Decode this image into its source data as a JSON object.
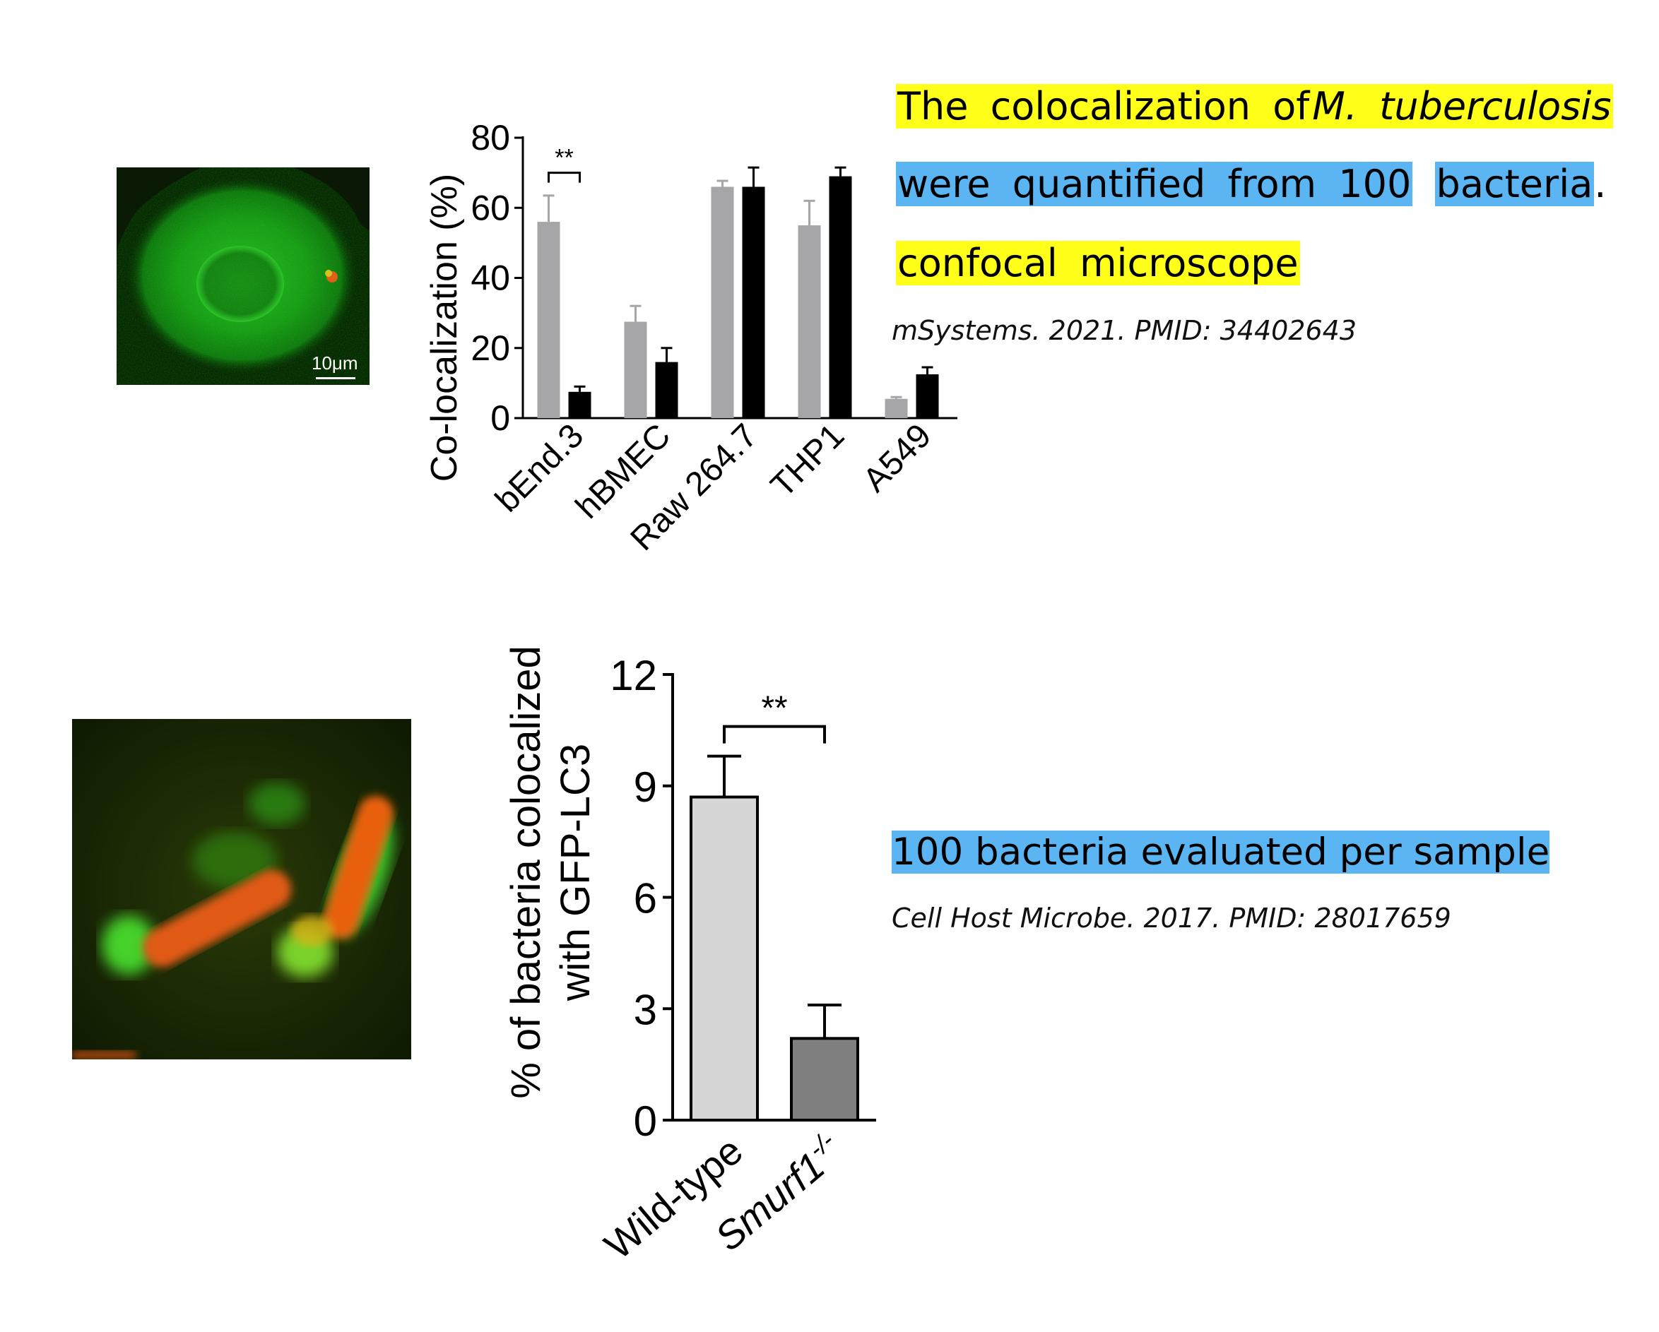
{
  "panel_top": {
    "image": {
      "scale_bar_label": "10μm"
    },
    "chart_data": {
      "type": "bar",
      "categories": [
        "bEnd.3",
        "hBMEC",
        "Raw 264.7",
        "THP1",
        "A549"
      ],
      "ylabel": "Co-localization (%)",
      "ylim": [
        0,
        80
      ],
      "yticks": [
        "0",
        "20",
        "40",
        "60",
        "80"
      ],
      "series": [
        {
          "values": [
            56,
            27.5,
            66,
            55,
            5.5
          ],
          "errors": [
            7.5,
            4.5,
            1.7,
            7,
            0.5
          ],
          "color": "#a6a6a8"
        },
        {
          "values": [
            7.5,
            16,
            66,
            69,
            12.5
          ],
          "errors": [
            1.5,
            4,
            5.5,
            2.5,
            2
          ],
          "color": "#000000"
        }
      ],
      "significance": {
        "category": "bEnd.3",
        "label": "**"
      }
    },
    "text": {
      "line1_a": "The colocalization of",
      "line1_b": "M. tuberculosis",
      "line2_a": "were quantified from 100",
      "line2_b": "bacteria",
      "line2_c": ".",
      "line3": "confocal microscope",
      "citation": "mSystems. 2021. PMID: 34402643"
    }
  },
  "panel_bottom": {
    "chart_data": {
      "type": "bar",
      "categories": [
        "Wild-type",
        "Smurf1"
      ],
      "category_superscripts": [
        "",
        "-/-"
      ],
      "ylabel_line1": "% of bacteria colocalized",
      "ylabel_line2": "with GFP-LC3",
      "ylim": [
        0,
        12
      ],
      "yticks": [
        "0",
        "3",
        "6",
        "9",
        "12"
      ],
      "values": [
        8.7,
        2.2
      ],
      "errors": [
        1.1,
        0.9
      ],
      "colors": [
        "#d6d6d6",
        "#7f7f7f"
      ],
      "significance": {
        "label": "**"
      }
    },
    "text": {
      "line1": "100 bacteria evaluated per sample",
      "citation": "Cell Host Microbe. 2017. PMID: 28017659"
    }
  }
}
